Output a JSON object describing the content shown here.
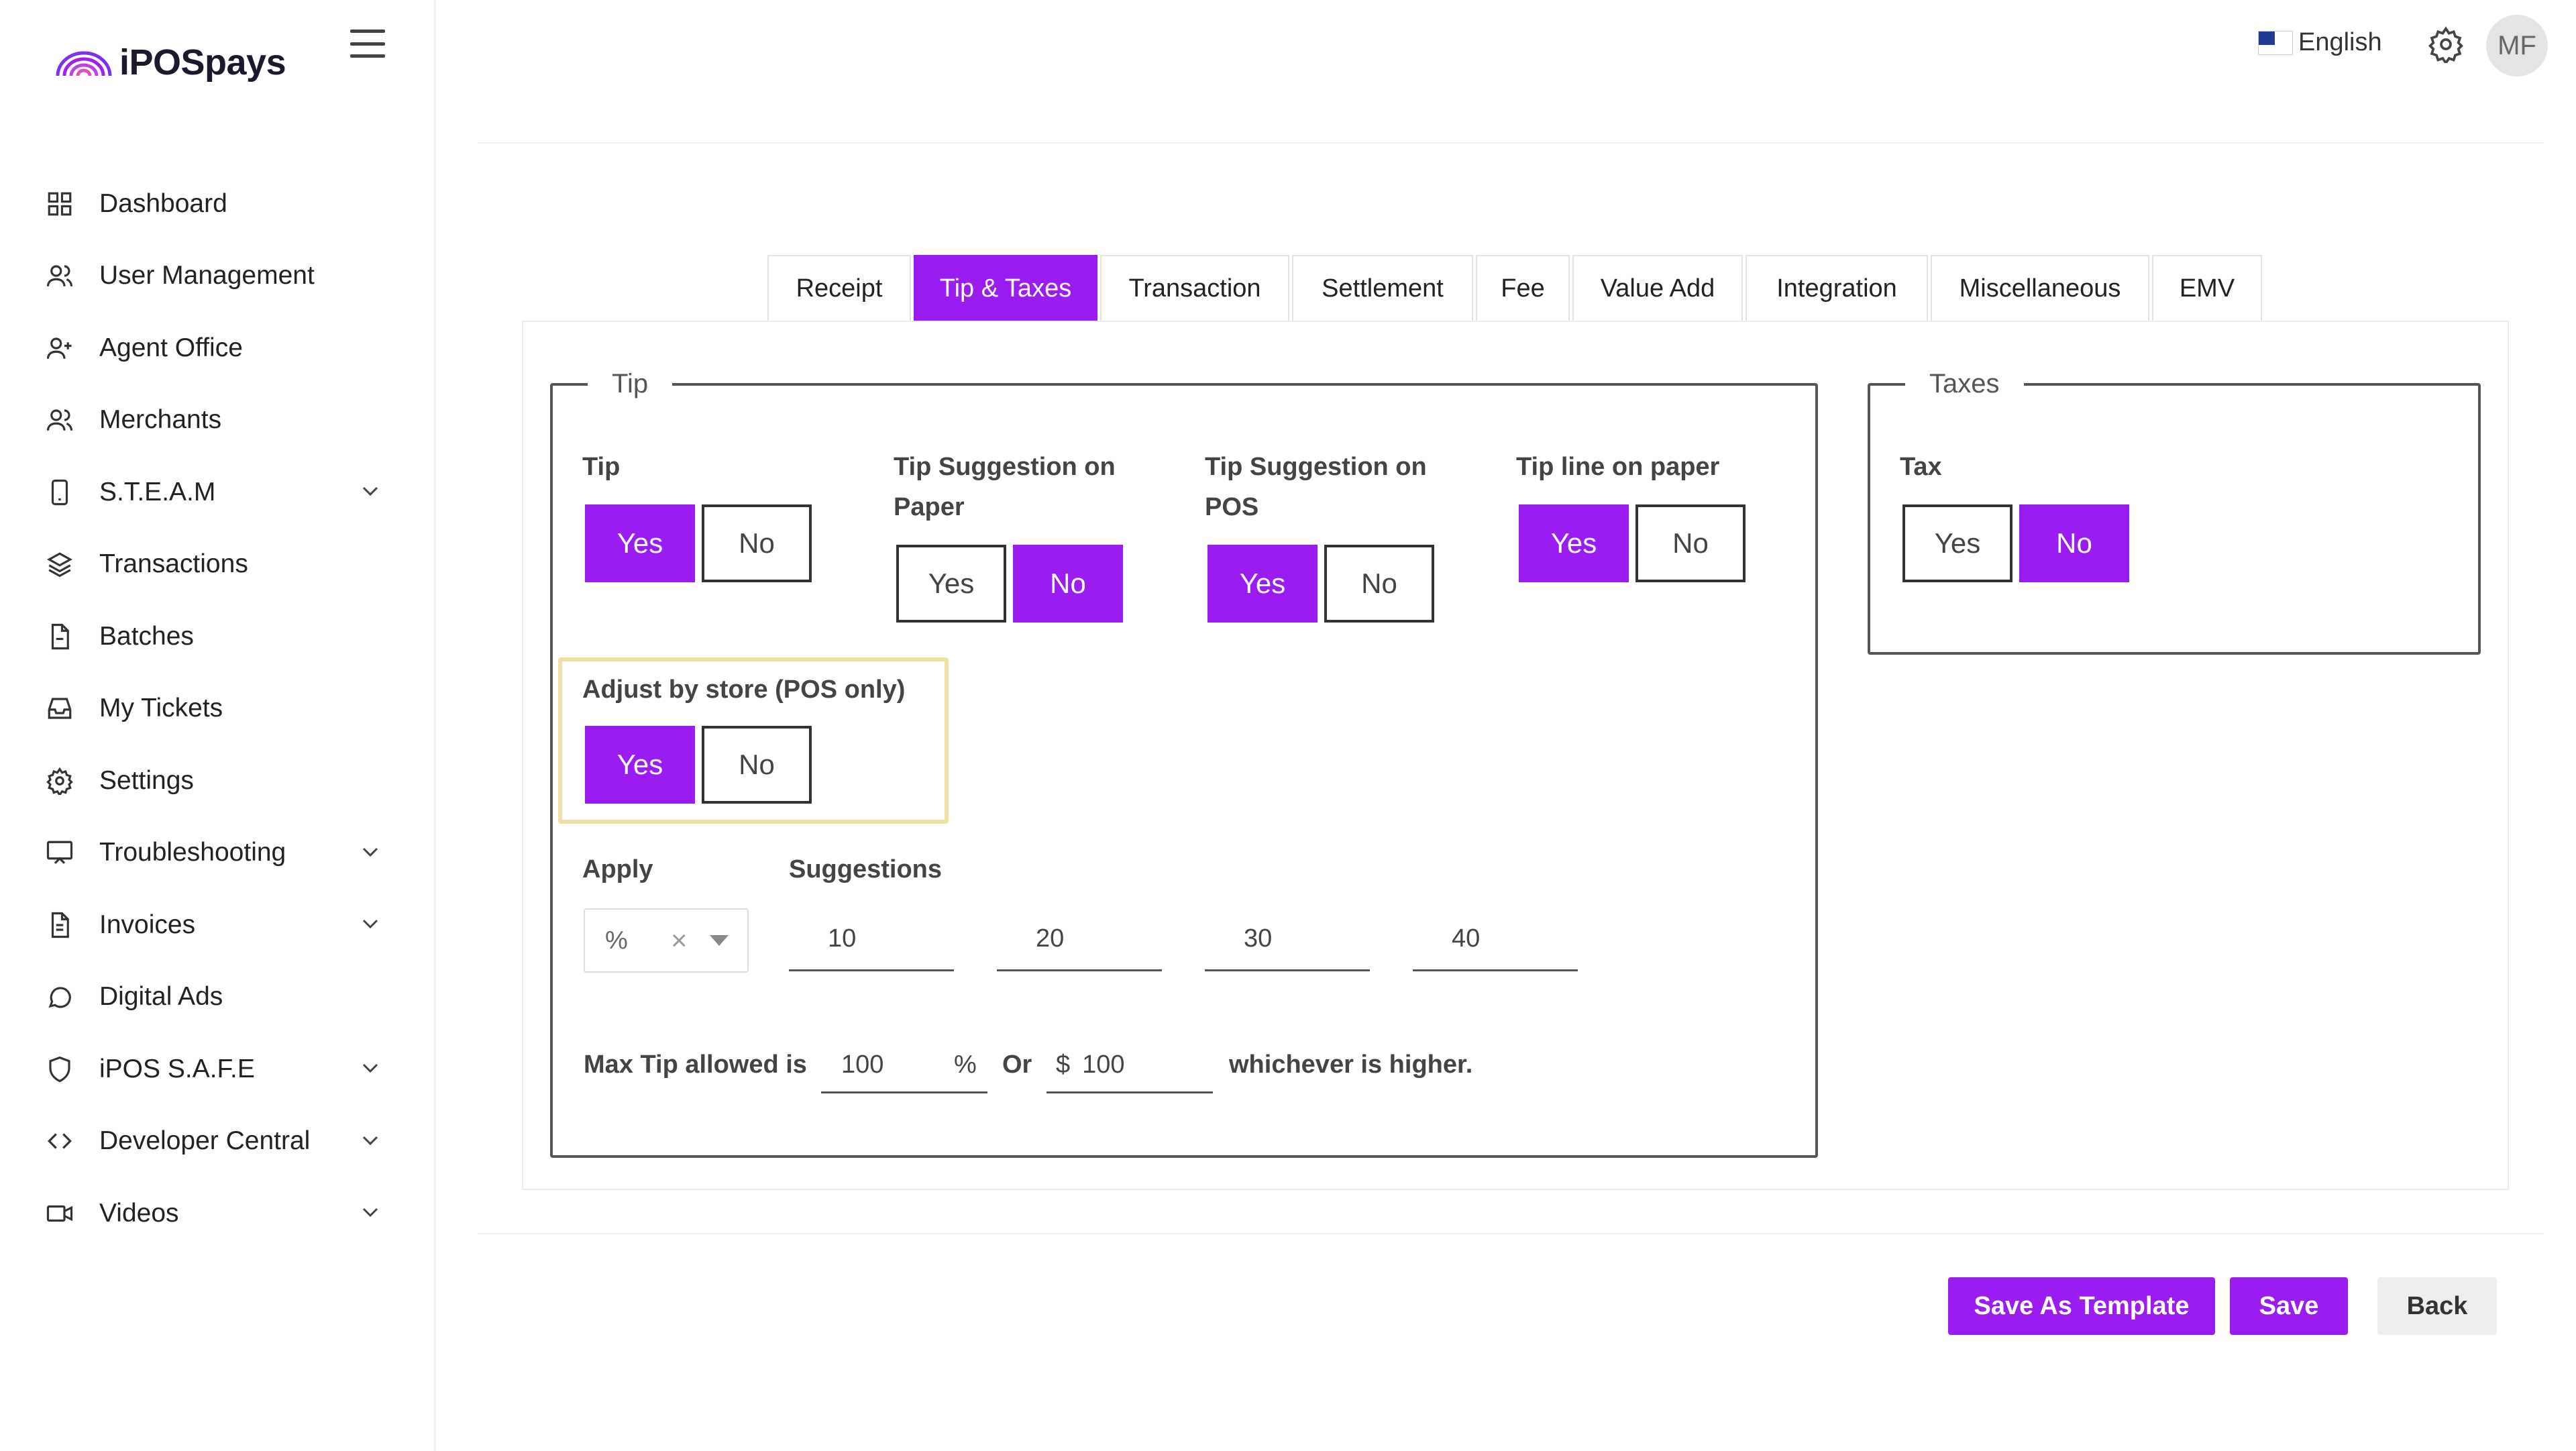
{
  "brand": {
    "name": "iPOSpays",
    "accent": "#9b1cf0"
  },
  "sidebar": {
    "items": [
      {
        "label": "Dashboard",
        "icon": "dashboard-icon",
        "expandable": false
      },
      {
        "label": "User Management",
        "icon": "users-icon",
        "expandable": false
      },
      {
        "label": "Agent Office",
        "icon": "user-plus-icon",
        "expandable": false
      },
      {
        "label": "Merchants",
        "icon": "users-icon",
        "expandable": false
      },
      {
        "label": "S.T.E.A.M",
        "icon": "tablet-icon",
        "expandable": true
      },
      {
        "label": "Transactions",
        "icon": "layers-icon",
        "expandable": false
      },
      {
        "label": "Batches",
        "icon": "file-icon",
        "expandable": false
      },
      {
        "label": "My Tickets",
        "icon": "inbox-icon",
        "expandable": false
      },
      {
        "label": "Settings",
        "icon": "gear-icon",
        "expandable": false
      },
      {
        "label": "Troubleshooting",
        "icon": "monitor-icon",
        "expandable": true
      },
      {
        "label": "Invoices",
        "icon": "document-icon",
        "expandable": true
      },
      {
        "label": "Digital Ads",
        "icon": "chat-icon",
        "expandable": false
      },
      {
        "label": "iPOS S.A.F.E",
        "icon": "shield-icon",
        "expandable": true
      },
      {
        "label": "Developer Central",
        "icon": "code-icon",
        "expandable": true
      },
      {
        "label": "Videos",
        "icon": "video-icon",
        "expandable": true
      }
    ]
  },
  "header": {
    "language": "English",
    "avatar_initials": "MF"
  },
  "tabs": [
    {
      "label": "Receipt",
      "active": false
    },
    {
      "label": "Tip & Taxes",
      "active": true
    },
    {
      "label": "Transaction",
      "active": false
    },
    {
      "label": "Settlement",
      "active": false
    },
    {
      "label": "Fee",
      "active": false
    },
    {
      "label": "Value Add",
      "active": false
    },
    {
      "label": "Integration",
      "active": false
    },
    {
      "label": "Miscellaneous",
      "active": false
    },
    {
      "label": "EMV",
      "active": false
    }
  ],
  "tip_section": {
    "legend": "Tip",
    "tip": {
      "label": "Tip",
      "yes": "Yes",
      "no": "No",
      "selected": "Yes"
    },
    "tip_paper": {
      "label_line1": "Tip Suggestion on",
      "label_line2": "Paper",
      "yes": "Yes",
      "no": "No",
      "selected": "No"
    },
    "tip_pos": {
      "label_line1": "Tip Suggestion on",
      "label_line2": "POS",
      "yes": "Yes",
      "no": "No",
      "selected": "Yes"
    },
    "tip_line": {
      "label": "Tip line on paper",
      "yes": "Yes",
      "no": "No",
      "selected": "Yes"
    },
    "adjust": {
      "label": "Adjust by store (POS only)",
      "yes": "Yes",
      "no": "No",
      "selected": "Yes"
    },
    "apply": {
      "label": "Apply",
      "value": "%"
    },
    "suggestions": {
      "label": "Suggestions",
      "values": [
        "10",
        "20",
        "30",
        "40"
      ]
    },
    "max_tip": {
      "prefix": "Max Tip allowed is",
      "percent_value": "100",
      "percent_symbol": "%",
      "or": "Or",
      "dollar_symbol": "$",
      "dollar_value": "100",
      "suffix": "whichever is higher."
    }
  },
  "tax_section": {
    "legend": "Taxes",
    "tax": {
      "label": "Tax",
      "yes": "Yes",
      "no": "No",
      "selected": "No"
    }
  },
  "actions": {
    "save_template": "Save As Template",
    "save": "Save",
    "back": "Back"
  }
}
